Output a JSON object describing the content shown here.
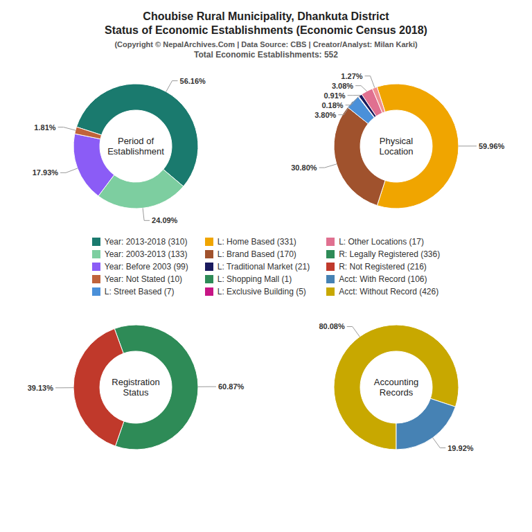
{
  "title": "Choubise Rural Municipality, Dhankuta District\nStatus of Economic Establishments (Economic Census 2018)",
  "subtitle": "(Copyright © NepalArchives.Com | Data Source: CBS | Creator/Analyst: Milan Karki)",
  "annotations": [
    "Total Economic Establishments: 552"
  ],
  "series": [
    {
      "name": "Year: 2013-2018 (310)",
      "color": "#1a7a6e"
    },
    {
      "name": "Year: 2003-2013 (133)",
      "color": "#7dcea0"
    },
    {
      "name": "Year: Before 2003 (99)",
      "color": "#8b5cf6"
    },
    {
      "name": "Year: Not Stated (10)",
      "color": "#c0633a"
    },
    {
      "name": "L: Street Based (7)",
      "color": "#4a90d9"
    },
    {
      "name": "L: Home Based (331)",
      "color": "#f0a500"
    },
    {
      "name": "L: Brand Based (170)",
      "color": "#a0522d"
    },
    {
      "name": "L: Traditional Market (21)",
      "color": "#1a1a5e"
    },
    {
      "name": "L: Shopping Mall (1)",
      "color": "#2e8b57"
    },
    {
      "name": "L: Exclusive Building (5)",
      "color": "#c71585"
    },
    {
      "name": "L: Other Locations (17)",
      "color": "#e07090"
    },
    {
      "name": "R: Legally Registered (336)",
      "color": "#2e8b57"
    },
    {
      "name": "R: Not Registered (216)",
      "color": "#c0392b"
    },
    {
      "name": "Acct: With Record (106)",
      "color": "#4682b4"
    },
    {
      "name": "Acct: Without Record (426)",
      "color": "#c8a800"
    }
  ],
  "chart_data": [
    {
      "type": "pie",
      "title": "Period of\nEstablishment",
      "values": [
        56.16,
        24.09,
        17.93,
        1.81
      ],
      "value_labels": [
        "56.16%",
        "24.09%",
        "17.93%",
        "1.81%"
      ],
      "colors": [
        "#1a7a6e",
        "#7dcea0",
        "#8b5cf6",
        "#c0633a"
      ],
      "data_labels": true
    },
    {
      "type": "pie",
      "title": "Physical\nLocation",
      "values": [
        59.96,
        30.8,
        3.8,
        0.18,
        0.91,
        3.08,
        1.27
      ],
      "value_labels": [
        "59.96%",
        "30.80%",
        "3.80%",
        "0.18%",
        "0.91%",
        "3.08%",
        "1.27%"
      ],
      "colors": [
        "#f0a500",
        "#a0522d",
        "#4a90d9",
        "#cccccc",
        "#1a1a5e",
        "#e07090",
        "#f09090"
      ],
      "data_labels": true
    },
    {
      "type": "pie",
      "title": "Registration\nStatus",
      "values": [
        60.87,
        39.13
      ],
      "value_labels": [
        "60.87%",
        "39.13%"
      ],
      "colors": [
        "#2e8b57",
        "#c0392b"
      ],
      "data_labels": true
    },
    {
      "type": "pie",
      "title": "Accounting\nRecords",
      "values": [
        80.08,
        19.92
      ],
      "value_labels": [
        "80.08%",
        "19.92%"
      ],
      "colors": [
        "#c8a800",
        "#4682b4"
      ],
      "data_labels": true
    }
  ]
}
